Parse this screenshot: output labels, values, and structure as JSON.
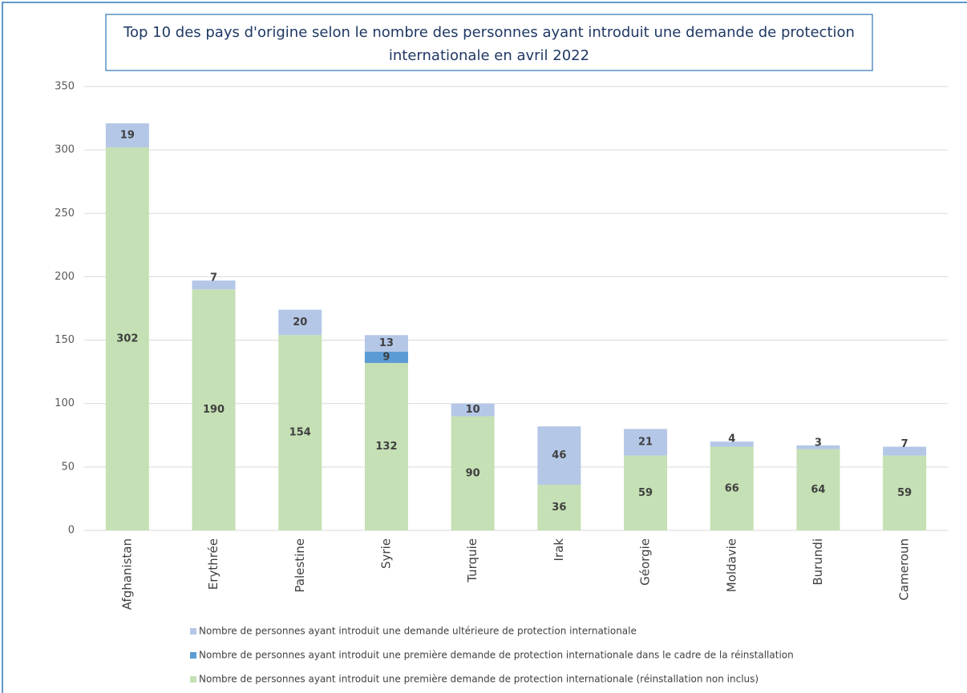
{
  "chart_data": {
    "type": "stacked-bar",
    "title_lines": [
      "Top 10 des pays d'origine selon le nombre des personnes ayant introduit une demande de protection",
      "internationale en avril 2022"
    ],
    "categories": [
      "Afghanistan",
      "Erythrée",
      "Palestine",
      "Syrie",
      "Turquie",
      "Irak",
      "Géorgie",
      "Moldavie",
      "Burundi",
      "Cameroun"
    ],
    "series": [
      {
        "name": "Nombre de personnes ayant introduit une première demande de protection internationale (réinstallation non inclus)",
        "color": "#c5e0b4",
        "values": [
          302,
          190,
          154,
          132,
          90,
          36,
          59,
          66,
          64,
          59
        ]
      },
      {
        "name": "Nombre de personnes ayant introduit une première demande de protection internationale dans le cadre de la réinstallation",
        "color": "#5b9bd5",
        "values": [
          null,
          null,
          null,
          9,
          null,
          null,
          null,
          null,
          null,
          null
        ]
      },
      {
        "name": "Nombre de personnes ayant introduit une demande ultérieure de protection internationale",
        "color": "#b4c7e7",
        "values": [
          19,
          7,
          20,
          13,
          10,
          46,
          21,
          4,
          3,
          7
        ]
      }
    ],
    "ylim": [
      0,
      350
    ],
    "yticks": [
      0,
      50,
      100,
      150,
      200,
      250,
      300,
      350
    ],
    "grid": true
  }
}
